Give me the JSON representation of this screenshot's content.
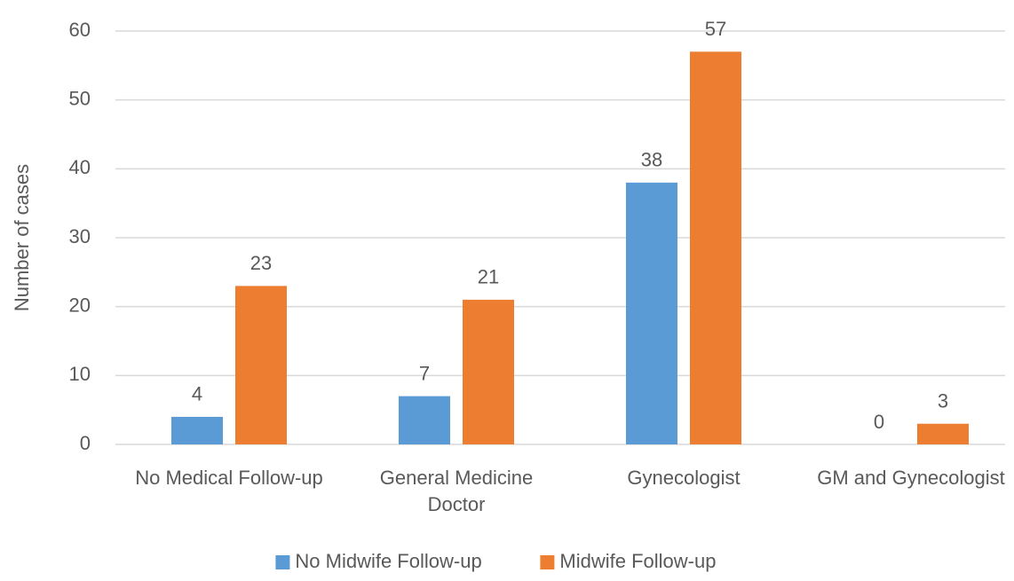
{
  "chart_data": {
    "type": "bar",
    "y_label": "Number of cases",
    "categories": [
      "No Medical Follow-up",
      "General Medicine Doctor",
      "Gynecologist",
      "GM and Gynecologist"
    ],
    "series": [
      {
        "name": "No Midwife Follow-up",
        "color": "#5b9bd5",
        "values": [
          4,
          7,
          38,
          0
        ]
      },
      {
        "name": "Midwife Follow-up",
        "color": "#ed7d31",
        "values": [
          23,
          21,
          57,
          3
        ]
      }
    ],
    "ylim": [
      0,
      60
    ],
    "yticks": [
      0,
      10,
      20,
      30,
      40,
      50,
      60
    ],
    "grid": true,
    "legend": "bottom"
  }
}
